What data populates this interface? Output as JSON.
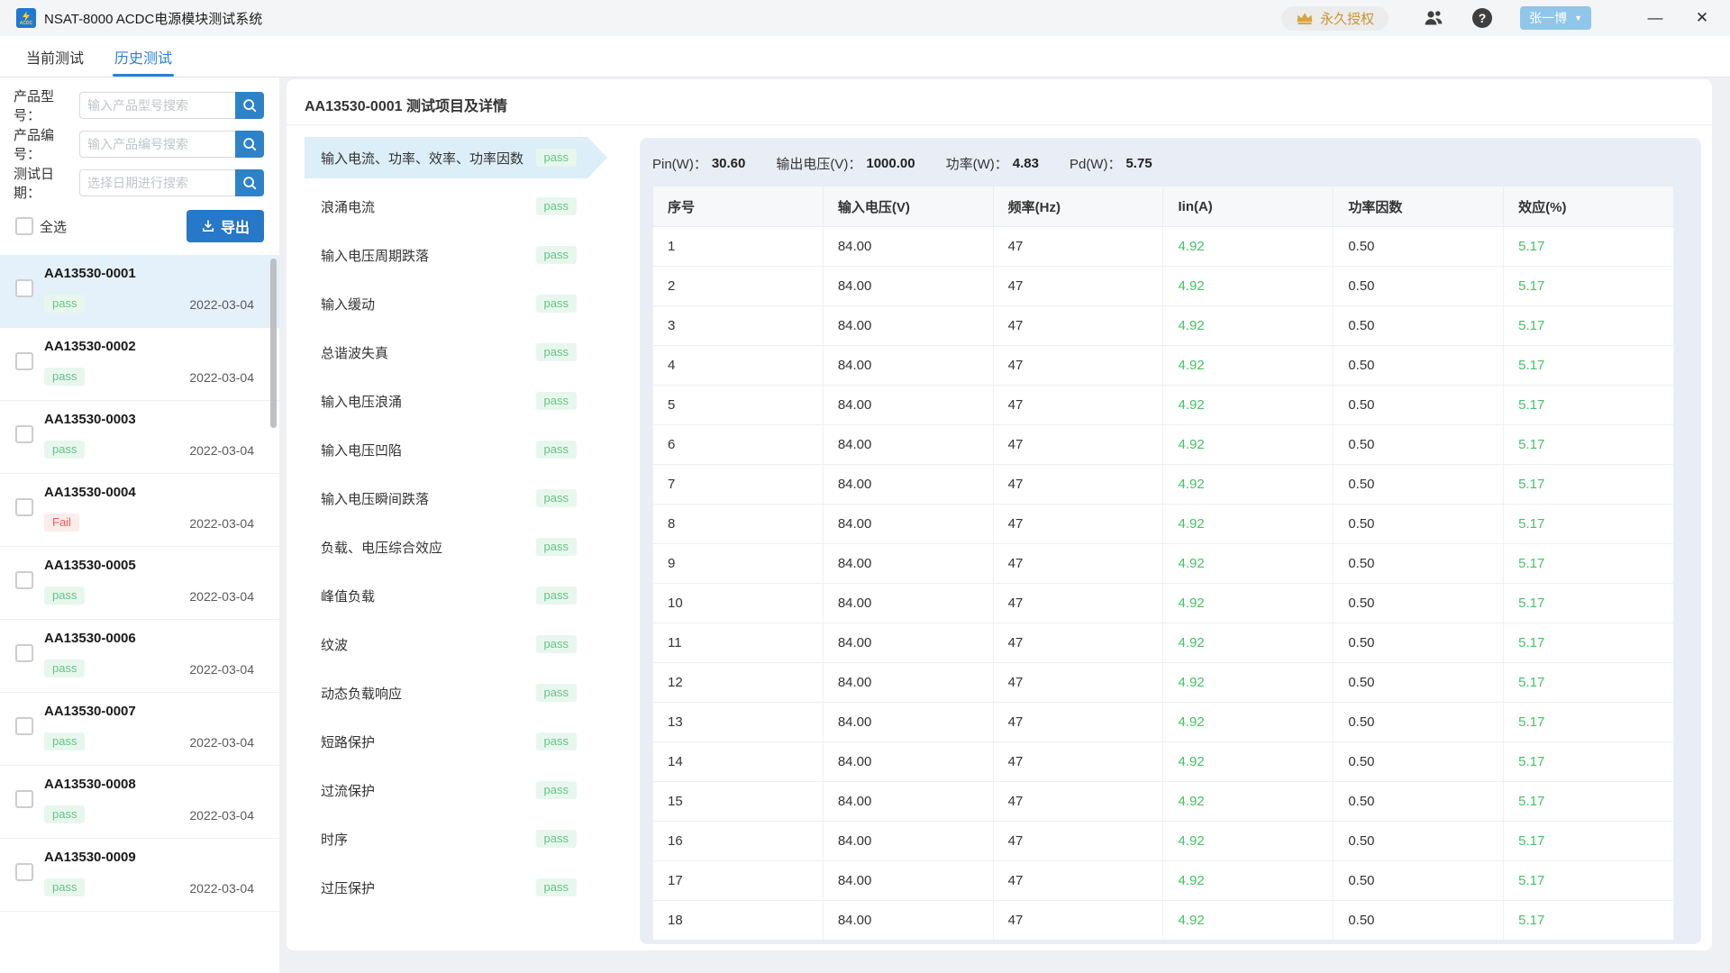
{
  "window": {
    "app_title": "NSAT-8000 ACDC电源模块测试系统",
    "logo_text": "ACDC",
    "license_label": "永久授权",
    "username": "张一博",
    "help_glyph": "?",
    "dropdown_glyph": "▼",
    "minimize_glyph": "—",
    "close_glyph": "✕"
  },
  "icons": {
    "logo": "lightning-icon",
    "license": "crown-icon",
    "account": "people-icon",
    "help": "question-mark-icon",
    "search": "magnifier-icon",
    "export": "download-icon"
  },
  "tabs": [
    {
      "label": "当前测试",
      "active": false
    },
    {
      "label": "历史测试",
      "active": true
    }
  ],
  "sidebar": {
    "filters": [
      {
        "label": "产品型号：",
        "placeholder": "输入产品型号搜索"
      },
      {
        "label": "产品编号：",
        "placeholder": "输入产品编号搜索"
      },
      {
        "label": "测试日期：",
        "placeholder": "选择日期进行搜索"
      }
    ],
    "select_all_label": "全选",
    "export_label": "导出",
    "items": [
      {
        "id": "AA13530-0001",
        "status": "pass",
        "date": "2022-03-04",
        "selected": true
      },
      {
        "id": "AA13530-0002",
        "status": "pass",
        "date": "2022-03-04",
        "selected": false
      },
      {
        "id": "AA13530-0003",
        "status": "pass",
        "date": "2022-03-04",
        "selected": false
      },
      {
        "id": "AA13530-0004",
        "status": "Fail",
        "date": "2022-03-04",
        "selected": false
      },
      {
        "id": "AA13530-0005",
        "status": "pass",
        "date": "2022-03-04",
        "selected": false
      },
      {
        "id": "AA13530-0006",
        "status": "pass",
        "date": "2022-03-04",
        "selected": false
      },
      {
        "id": "AA13530-0007",
        "status": "pass",
        "date": "2022-03-04",
        "selected": false
      },
      {
        "id": "AA13530-0008",
        "status": "pass",
        "date": "2022-03-04",
        "selected": false
      },
      {
        "id": "AA13530-0009",
        "status": "pass",
        "date": "2022-03-04",
        "selected": false
      }
    ]
  },
  "detail": {
    "title": "AA13530-0001 测试项目及详情",
    "test_items": [
      {
        "label": "输入电流、功率、效率、功率因数",
        "status": "pass",
        "selected": true
      },
      {
        "label": "浪涌电流",
        "status": "pass",
        "selected": false
      },
      {
        "label": "输入电压周期跌落",
        "status": "pass",
        "selected": false
      },
      {
        "label": "输入缓动",
        "status": "pass",
        "selected": false
      },
      {
        "label": "总谐波失真",
        "status": "pass",
        "selected": false
      },
      {
        "label": "输入电压浪涌",
        "status": "pass",
        "selected": false
      },
      {
        "label": "输入电压凹陷",
        "status": "pass",
        "selected": false
      },
      {
        "label": "输入电压瞬间跌落",
        "status": "pass",
        "selected": false
      },
      {
        "label": "负载、电压综合效应",
        "status": "pass",
        "selected": false
      },
      {
        "label": "峰值负载",
        "status": "pass",
        "selected": false
      },
      {
        "label": "纹波",
        "status": "pass",
        "selected": false
      },
      {
        "label": "动态负载响应",
        "status": "pass",
        "selected": false
      },
      {
        "label": "短路保护",
        "status": "pass",
        "selected": false
      },
      {
        "label": "过流保护",
        "status": "pass",
        "selected": false
      },
      {
        "label": "时序",
        "status": "pass",
        "selected": false
      },
      {
        "label": "过压保护",
        "status": "pass",
        "selected": false
      }
    ],
    "stats": [
      {
        "label": "Pin(W)：",
        "value": "30.60"
      },
      {
        "label": "输出电压(V)：",
        "value": "1000.00"
      },
      {
        "label": "功率(W)：",
        "value": "4.83"
      },
      {
        "label": "Pd(W)：",
        "value": "5.75"
      }
    ],
    "table": {
      "columns": [
        "序号",
        "输入电压(V)",
        "频率(Hz)",
        "Iin(A)",
        "功率因数",
        "效应(%)"
      ],
      "green_columns": [
        3,
        5
      ],
      "rows": [
        [
          "1",
          "84.00",
          "47",
          "4.92",
          "0.50",
          "5.17"
        ],
        [
          "2",
          "84.00",
          "47",
          "4.92",
          "0.50",
          "5.17"
        ],
        [
          "3",
          "84.00",
          "47",
          "4.92",
          "0.50",
          "5.17"
        ],
        [
          "4",
          "84.00",
          "47",
          "4.92",
          "0.50",
          "5.17"
        ],
        [
          "5",
          "84.00",
          "47",
          "4.92",
          "0.50",
          "5.17"
        ],
        [
          "6",
          "84.00",
          "47",
          "4.92",
          "0.50",
          "5.17"
        ],
        [
          "7",
          "84.00",
          "47",
          "4.92",
          "0.50",
          "5.17"
        ],
        [
          "8",
          "84.00",
          "47",
          "4.92",
          "0.50",
          "5.17"
        ],
        [
          "9",
          "84.00",
          "47",
          "4.92",
          "0.50",
          "5.17"
        ],
        [
          "10",
          "84.00",
          "47",
          "4.92",
          "0.50",
          "5.17"
        ],
        [
          "11",
          "84.00",
          "47",
          "4.92",
          "0.50",
          "5.17"
        ],
        [
          "12",
          "84.00",
          "47",
          "4.92",
          "0.50",
          "5.17"
        ],
        [
          "13",
          "84.00",
          "47",
          "4.92",
          "0.50",
          "5.17"
        ],
        [
          "14",
          "84.00",
          "47",
          "4.92",
          "0.50",
          "5.17"
        ],
        [
          "15",
          "84.00",
          "47",
          "4.92",
          "0.50",
          "5.17"
        ],
        [
          "16",
          "84.00",
          "47",
          "4.92",
          "0.50",
          "5.17"
        ],
        [
          "17",
          "84.00",
          "47",
          "4.92",
          "0.50",
          "5.17"
        ],
        [
          "18",
          "84.00",
          "47",
          "4.92",
          "0.50",
          "5.17"
        ]
      ]
    }
  },
  "colors": {
    "primary_blue": "#2b80c9",
    "tab_active_blue": "#2b7fd6",
    "pass_green": "#67c287",
    "value_green": "#45c263",
    "fail_red": "#f25f55",
    "panel_bg": "#e9eef6",
    "selected_item_bg": "#e4f1fa",
    "selected_test_bg": "#dceef7",
    "license_gold": "#c8962e"
  }
}
